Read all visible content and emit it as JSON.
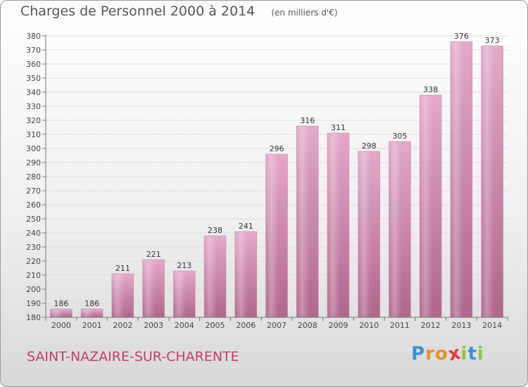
{
  "header": {
    "title": "Charges de Personnel 2000 à 2014",
    "subtitle": "(en milliers d'€)"
  },
  "footer": {
    "commune": "SAINT-NAZAIRE-SUR-CHARENTE",
    "logo_letters": [
      "P",
      "r",
      "o",
      "x",
      "i",
      "t",
      "i"
    ],
    "logo_colors": [
      "#3d8fd6",
      "#e8902a",
      "#e8902a",
      "#e23a3a",
      "#8cc63f",
      "#3d8fd6",
      "#8cc63f"
    ]
  },
  "colors": {
    "bar_light": "#e4a8cb",
    "bar_dark": "#b0668e",
    "commune_text": "#c03d6e"
  },
  "chart_data": {
    "type": "bar",
    "categories": [
      "2000",
      "2001",
      "2002",
      "2003",
      "2004",
      "2005",
      "2006",
      "2007",
      "2008",
      "2009",
      "2010",
      "2011",
      "2012",
      "2013",
      "2014"
    ],
    "values": [
      186,
      186,
      211,
      221,
      213,
      238,
      241,
      296,
      316,
      311,
      298,
      305,
      338,
      376,
      373
    ],
    "title": "Charges de Personnel 2000 à 2014",
    "xlabel": "",
    "ylabel": "",
    "ylim": [
      180,
      380
    ],
    "ytick_step": 10,
    "grid": true,
    "legend": "none"
  }
}
